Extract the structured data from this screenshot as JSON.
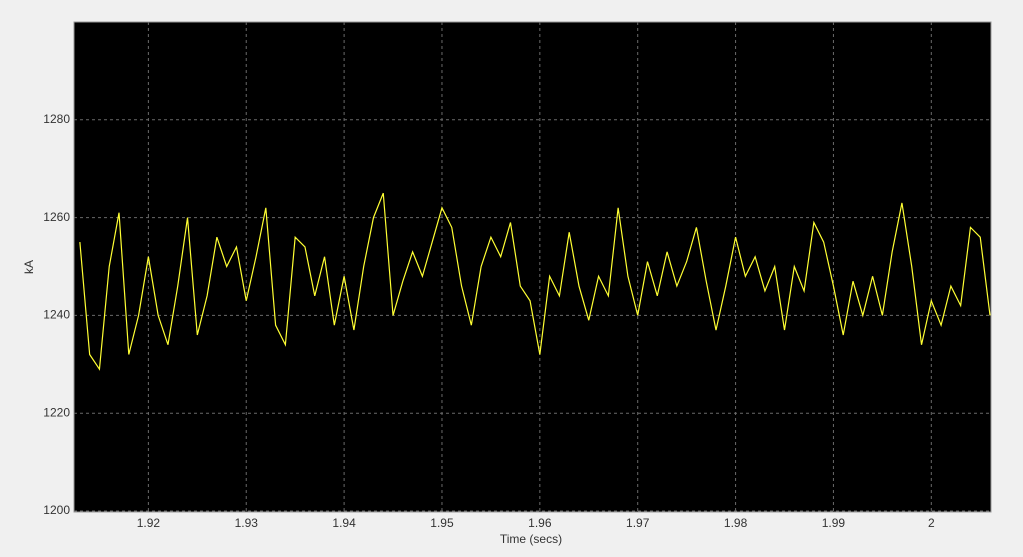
{
  "chart_data": {
    "type": "line",
    "xlabel": "Time (secs)",
    "ylabel": "kA",
    "x": [
      1.913,
      1.914,
      1.915,
      1.916,
      1.917,
      1.918,
      1.919,
      1.92,
      1.921,
      1.922,
      1.923,
      1.924,
      1.925,
      1.926,
      1.927,
      1.928,
      1.929,
      1.93,
      1.931,
      1.932,
      1.933,
      1.934,
      1.935,
      1.936,
      1.937,
      1.938,
      1.939,
      1.94,
      1.941,
      1.942,
      1.943,
      1.944,
      1.945,
      1.946,
      1.947,
      1.948,
      1.949,
      1.95,
      1.951,
      1.952,
      1.953,
      1.954,
      1.955,
      1.956,
      1.957,
      1.958,
      1.959,
      1.96,
      1.961,
      1.962,
      1.963,
      1.964,
      1.965,
      1.966,
      1.967,
      1.968,
      1.969,
      1.97,
      1.971,
      1.972,
      1.973,
      1.974,
      1.975,
      1.976,
      1.977,
      1.978,
      1.979,
      1.98,
      1.981,
      1.982,
      1.983,
      1.984,
      1.985,
      1.986,
      1.987,
      1.988,
      1.989,
      1.99,
      1.991,
      1.992,
      1.993,
      1.994,
      1.995,
      1.996,
      1.997,
      1.998,
      1.999,
      2.0,
      2.001,
      2.002,
      2.003,
      2.004,
      2.005,
      2.006
    ],
    "series": [
      {
        "color": "#ffff33",
        "values": [
          1255,
          1232,
          1229,
          1250,
          1261,
          1232,
          1240,
          1252,
          1240,
          1234,
          1246,
          1260,
          1236,
          1244,
          1256,
          1250,
          1254,
          1243,
          1252,
          1262,
          1238,
          1234,
          1256,
          1254,
          1244,
          1252,
          1238,
          1248,
          1237,
          1250,
          1260,
          1265,
          1240,
          1247,
          1253,
          1248,
          1255,
          1262,
          1258,
          1246,
          1238,
          1250,
          1256,
          1252,
          1259,
          1246,
          1243,
          1232,
          1248,
          1244,
          1257,
          1246,
          1239,
          1248,
          1244,
          1262,
          1248,
          1240,
          1251,
          1244,
          1253,
          1246,
          1251,
          1258,
          1247,
          1237,
          1246,
          1256,
          1248,
          1252,
          1245,
          1250,
          1237,
          1250,
          1245,
          1259,
          1255,
          1246,
          1236,
          1247,
          1240,
          1248,
          1240,
          1253,
          1263,
          1250,
          1234,
          1243,
          1238,
          1246,
          1242,
          1258,
          1256,
          1240
        ]
      }
    ],
    "xlim": [
      1.9124,
      2.0061
    ],
    "ylim": [
      1200,
      1300
    ],
    "xticks": [
      1.92,
      1.93,
      1.94,
      1.95,
      1.96,
      1.97,
      1.98,
      1.99,
      2
    ],
    "yticks": [
      1200,
      1220,
      1240,
      1260,
      1280
    ],
    "grid": true
  }
}
